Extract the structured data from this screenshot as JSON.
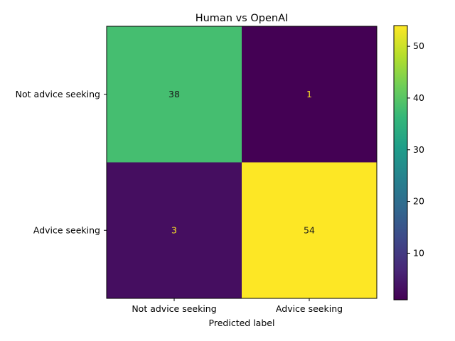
{
  "chart_data": {
    "type": "heatmap",
    "title": "Human vs OpenAI",
    "xlabel": "Predicted label",
    "ylabel": "",
    "x_categories": [
      "Not advice seeking",
      "Advice seeking"
    ],
    "y_categories": [
      "Not advice seeking",
      "Advice seeking"
    ],
    "values": [
      [
        38,
        1
      ],
      [
        3,
        54
      ]
    ],
    "colormap": "viridis",
    "colorbar": {
      "range": [
        1,
        54
      ],
      "ticks": [
        10,
        20,
        30,
        40,
        50
      ]
    },
    "grid": false,
    "colors": {
      "light_text": "#fde725",
      "dark_text": "#1a1a1a"
    }
  }
}
